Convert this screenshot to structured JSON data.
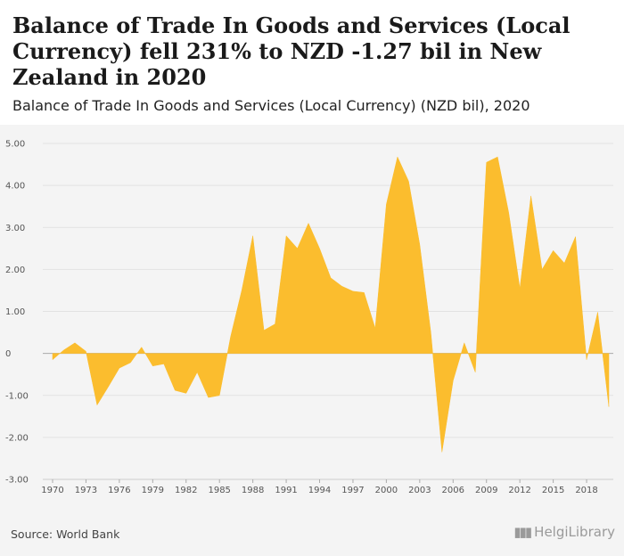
{
  "header": {
    "title": "Balance of Trade In Goods and Services (Local Currency) fell 231% to NZD -1.27 bil in New Zealand in 2020",
    "subtitle": "Balance of Trade In Goods and Services (Local Currency) (NZD bil), 2020"
  },
  "footer": {
    "source": "Source: World Bank",
    "logo_text": "HelgiLibrary"
  },
  "colors": {
    "area_fill": "#fbbd2e",
    "gridline": "#e2e2e2",
    "zero_line": "#aaaaaa"
  },
  "chart_data": {
    "type": "area",
    "title": "",
    "xlabel": "",
    "ylabel": "",
    "ylim": [
      -3,
      5
    ],
    "xlim": [
      1970,
      2020
    ],
    "yticks": [
      -3,
      -2,
      -1,
      0,
      1,
      2,
      3,
      4,
      5
    ],
    "ytick_labels": [
      "-3.00",
      "-2.00",
      "-1.00",
      "0",
      "1.00",
      "2.00",
      "3.00",
      "4.00",
      "5.00"
    ],
    "xticks": [
      1970,
      1973,
      1976,
      1979,
      1982,
      1985,
      1988,
      1991,
      1994,
      1997,
      2000,
      2003,
      2006,
      2009,
      2012,
      2015,
      2018
    ],
    "grid": "horizontal",
    "series": [
      {
        "values": [
          [
            1970,
            -0.15
          ],
          [
            1971,
            0.08
          ],
          [
            1972,
            0.25
          ],
          [
            1973,
            0.05
          ],
          [
            1974,
            -1.23
          ],
          [
            1975,
            -0.8
          ],
          [
            1976,
            -0.35
          ],
          [
            1977,
            -0.22
          ],
          [
            1978,
            0.15
          ],
          [
            1979,
            -0.3
          ],
          [
            1980,
            -0.25
          ],
          [
            1981,
            -0.88
          ],
          [
            1982,
            -0.95
          ],
          [
            1983,
            -0.45
          ],
          [
            1984,
            -1.05
          ],
          [
            1985,
            -1.0
          ],
          [
            1986,
            0.4
          ],
          [
            1987,
            1.5
          ],
          [
            1988,
            2.8
          ],
          [
            1989,
            0.55
          ],
          [
            1990,
            0.7
          ],
          [
            1991,
            2.8
          ],
          [
            1992,
            2.5
          ],
          [
            1993,
            3.1
          ],
          [
            1994,
            2.5
          ],
          [
            1995,
            1.8
          ],
          [
            1996,
            1.6
          ],
          [
            1997,
            1.48
          ],
          [
            1998,
            1.45
          ],
          [
            1999,
            0.6
          ],
          [
            2000,
            3.55
          ],
          [
            2001,
            4.68
          ],
          [
            2002,
            4.1
          ],
          [
            2003,
            2.6
          ],
          [
            2004,
            0.5
          ],
          [
            2005,
            -2.35
          ],
          [
            2006,
            -0.65
          ],
          [
            2007,
            0.25
          ],
          [
            2008,
            -0.45
          ],
          [
            2009,
            4.55
          ],
          [
            2010,
            4.68
          ],
          [
            2011,
            3.35
          ],
          [
            2012,
            1.55
          ],
          [
            2013,
            3.75
          ],
          [
            2014,
            2.0
          ],
          [
            2015,
            2.45
          ],
          [
            2016,
            2.15
          ],
          [
            2017,
            2.78
          ],
          [
            2018,
            -0.15
          ],
          [
            2019,
            0.98
          ],
          [
            2020,
            -1.27
          ]
        ]
      }
    ]
  }
}
